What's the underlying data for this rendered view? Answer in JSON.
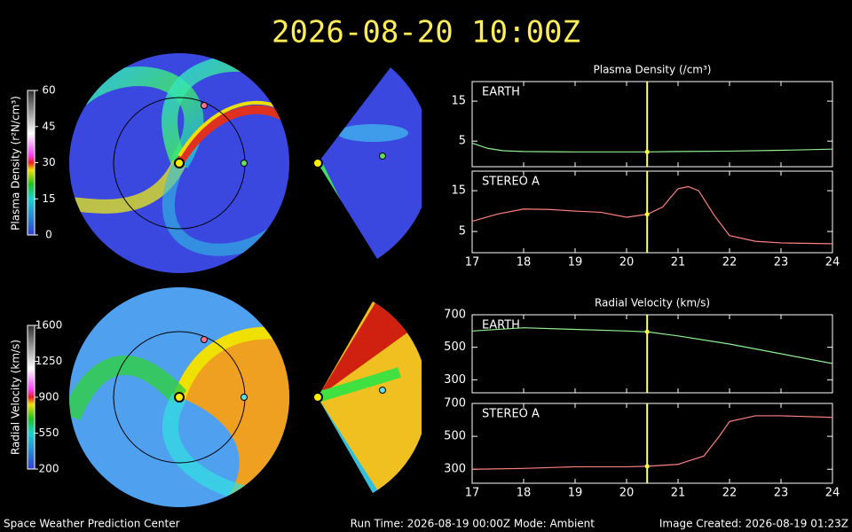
{
  "title": "2026-08-20 10:00Z",
  "footer": {
    "left": "Space Weather Prediction Center",
    "center": "Run Time: 2026-08-19 00:00Z  Mode: Ambient",
    "right": "Image Created: 2026-08-19 01:23Z"
  },
  "colorbars": [
    {
      "title": "Plasma Density (r²N/cm³)",
      "lim": [
        0,
        60
      ],
      "ticks": [
        0,
        15,
        30,
        45,
        60
      ]
    },
    {
      "title": "Radial Velocity (km/s)",
      "lim": [
        200,
        1600
      ],
      "ticks": [
        200,
        550,
        900,
        1250,
        1600
      ]
    }
  ],
  "chart_data": [
    {
      "type": "line",
      "title": "Plasma Density (/cm³)",
      "label": "EARTH",
      "color": "#90ee90",
      "x": [
        17,
        17.3,
        17.6,
        18,
        19,
        20,
        20.4,
        21,
        22,
        23,
        24
      ],
      "values": [
        4.5,
        3.2,
        2.6,
        2.4,
        2.3,
        2.3,
        2.3,
        2.4,
        2.5,
        2.7,
        3.0
      ],
      "xlim": [
        17,
        24
      ],
      "ylim": [
        -1.4,
        19.9
      ],
      "xticks": [
        17,
        18,
        19,
        20,
        21,
        22,
        23,
        24
      ],
      "yticks": [
        5,
        15
      ],
      "now_x": 20.4
    },
    {
      "type": "line",
      "label": "STEREO A",
      "color": "#ff8080",
      "x": [
        17,
        17.5,
        18,
        18.5,
        19,
        19.5,
        20,
        20.4,
        20.7,
        21,
        21.2,
        21.4,
        21.7,
        22,
        22.5,
        23,
        24
      ],
      "values": [
        7.5,
        9.3,
        10.5,
        10.4,
        10,
        9.7,
        8.5,
        9.2,
        11,
        15.5,
        16,
        15,
        9,
        4,
        2.6,
        2.2,
        2.0
      ],
      "xlim": [
        17,
        24
      ],
      "ylim": [
        -0.2,
        19.8
      ],
      "xticks": [
        17,
        18,
        19,
        20,
        21,
        22,
        23,
        24
      ],
      "yticks": [
        5,
        15
      ],
      "now_x": 20.4
    },
    {
      "type": "line",
      "title": "Radial Velocity (km/s)",
      "label": "EARTH",
      "color": "#90ee90",
      "x": [
        17,
        18,
        19,
        20,
        20.4,
        21,
        22,
        23,
        24
      ],
      "values": [
        600,
        620,
        610,
        600,
        595,
        570,
        520,
        460,
        400
      ],
      "xlim": [
        17,
        24
      ],
      "ylim": [
        220,
        700
      ],
      "xticks": [
        17,
        18,
        19,
        20,
        21,
        22,
        23,
        24
      ],
      "yticks": [
        300,
        500,
        700
      ],
      "now_x": 20.4
    },
    {
      "type": "line",
      "label": "STEREO A",
      "color": "#ff8080",
      "x": [
        17,
        18,
        19,
        20,
        20.4,
        21,
        21.5,
        21.8,
        22,
        22.5,
        23,
        24
      ],
      "values": [
        300,
        305,
        315,
        315,
        318,
        330,
        380,
        500,
        590,
        625,
        625,
        615
      ],
      "xlim": [
        17,
        24
      ],
      "ylim": [
        215,
        700
      ],
      "xticks": [
        17,
        18,
        19,
        20,
        21,
        22,
        23,
        24
      ],
      "yticks": [
        300,
        500,
        700
      ],
      "now_x": 20.4
    }
  ]
}
